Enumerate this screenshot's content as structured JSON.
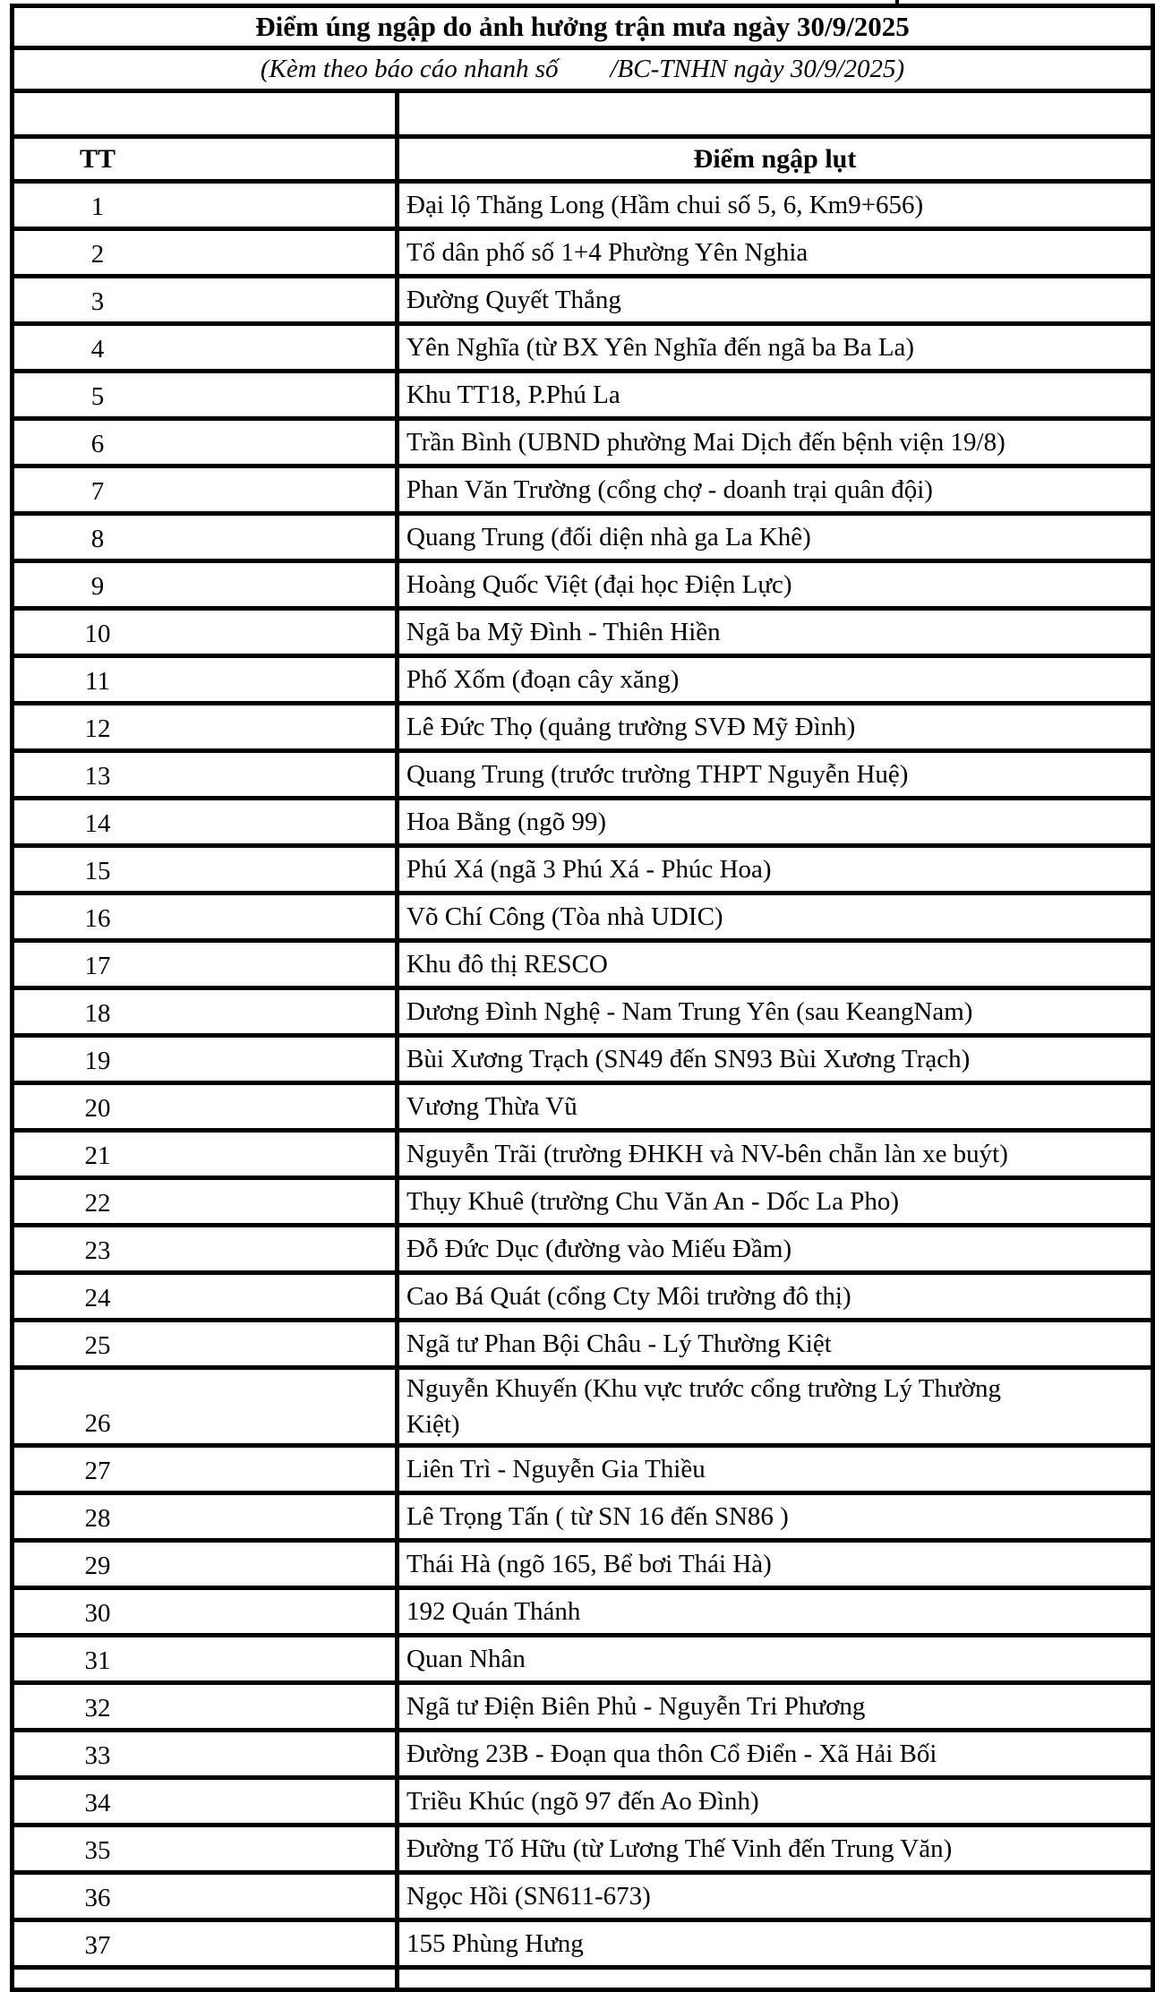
{
  "table": {
    "title": "Điểm úng ngập do ảnh hưởng trận mưa ngày 30/9/2025",
    "subtitle_left": "(Kèm theo báo cáo nhanh số",
    "subtitle_right": "/BC-TNHN ngày 30/9/2025)",
    "columns": {
      "tt": "TT",
      "point": "Điểm ngập lụt"
    },
    "rows": [
      {
        "n": "1",
        "text": "Đại lộ Thăng Long (Hầm chui số 5, 6, Km9+656)"
      },
      {
        "n": "2",
        "text": "Tổ dân phố số 1+4 Phường Yên Nghia"
      },
      {
        "n": "3",
        "text": "Đường Quyết Thắng"
      },
      {
        "n": "4",
        "text": "Yên Nghĩa (từ BX Yên Nghĩa đến ngã ba Ba La)"
      },
      {
        "n": "5",
        "text": "Khu TT18, P.Phú La"
      },
      {
        "n": "6",
        "text": "Trần Bình (UBND phường Mai Dịch đến bệnh viện 19/8)"
      },
      {
        "n": "7",
        "text": "Phan Văn Trường (cổng chợ - doanh trại quân đội)"
      },
      {
        "n": "8",
        "text": "Quang Trung (đối diện nhà ga La Khê)"
      },
      {
        "n": "9",
        "text": "Hoàng Quốc Việt (đại học Điện Lực)"
      },
      {
        "n": "10",
        "text": "Ngã ba Mỹ Đình - Thiên Hiền"
      },
      {
        "n": "11",
        "text": "Phố Xốm (đoạn cây xăng)"
      },
      {
        "n": "12",
        "text": "Lê Đức Thọ (quảng trường SVĐ Mỹ Đình)"
      },
      {
        "n": "13",
        "text": "Quang Trung (trước trường THPT Nguyễn Huệ)"
      },
      {
        "n": "14",
        "text": "Hoa Bằng (ngõ 99)"
      },
      {
        "n": "15",
        "text": "Phú Xá (ngã 3 Phú Xá - Phúc Hoa)"
      },
      {
        "n": "16",
        "text": "Võ Chí Công (Tòa nhà UDIC)"
      },
      {
        "n": "17",
        "text": "Khu đô thị RESCO"
      },
      {
        "n": "18",
        "text": "Dương Đình Nghệ - Nam Trung Yên (sau KeangNam)"
      },
      {
        "n": "19",
        "text": "Bùi Xương Trạch (SN49 đến SN93 Bùi Xương Trạch)"
      },
      {
        "n": "20",
        "text": "Vương Thừa Vũ"
      },
      {
        "n": "21",
        "text": "Nguyễn Trãi (trường ĐHKH và NV-bên chẵn làn xe buýt)"
      },
      {
        "n": "22",
        "text": "Thụy Khuê (trường Chu Văn An - Dốc La Pho)"
      },
      {
        "n": "23",
        "text": "Đỗ Đức Dục (đường vào Miếu Đầm)"
      },
      {
        "n": "24",
        "text": "Cao Bá Quát (cổng Cty Môi trường đô thị)"
      },
      {
        "n": "25",
        "text": "Ngã tư Phan Bội Châu - Lý Thường Kiệt"
      },
      {
        "n": "26",
        "text": "Nguyễn Khuyến (Khu vực trước cổng trường Lý Thường\nKiệt)"
      },
      {
        "n": "27",
        "text": "Liên Trì - Nguyễn Gia Thiều"
      },
      {
        "n": "28",
        "text": "Lê Trọng Tấn ( từ SN 16 đến SN86 )"
      },
      {
        "n": "29",
        "text": "Thái Hà (ngõ 165, Bể bơi Thái Hà)"
      },
      {
        "n": "30",
        "text": "192 Quán Thánh"
      },
      {
        "n": "31",
        "text": "Quan Nhân"
      },
      {
        "n": "32",
        "text": "Ngã tư Điện Biên Phủ - Nguyễn Tri Phương"
      },
      {
        "n": "33",
        "text": "Đường 23B - Đoạn qua thôn Cổ Điển - Xã Hải Bối"
      },
      {
        "n": "34",
        "text": "Triều Khúc (ngõ 97 đến Ao Đình)"
      },
      {
        "n": "35",
        "text": "Đường Tố Hữu (từ Lương Thế Vinh đến Trung Văn)"
      },
      {
        "n": "36",
        "text": "Ngọc Hồi (SN611-673)"
      },
      {
        "n": "37",
        "text": "155 Phùng Hưng"
      }
    ]
  }
}
